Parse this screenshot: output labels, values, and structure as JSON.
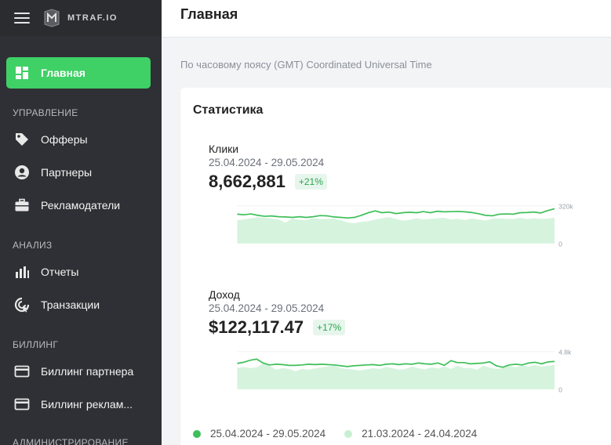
{
  "header": {
    "title": "Главная",
    "logo_text": "MTRAF.IO"
  },
  "sidebar": {
    "items": [
      {
        "label": "Главная",
        "icon": "dashboard-icon",
        "active": true
      },
      {
        "label": "Офферы",
        "icon": "tag-icon"
      },
      {
        "label": "Партнеры",
        "icon": "user-circle-icon"
      },
      {
        "label": "Рекламодатели",
        "icon": "briefcase-icon"
      },
      {
        "label": "Отчеты",
        "icon": "bar-chart-icon"
      },
      {
        "label": "Транзакции",
        "icon": "transactions-icon"
      },
      {
        "label": "Биллинг партнера",
        "icon": "card-icon"
      },
      {
        "label": "Биллинг реклам...",
        "icon": "card-icon"
      }
    ],
    "sections": [
      "УПРАВЛЕНИЕ",
      "АНАЛИЗ",
      "БИЛЛИНГ",
      "АДМИНИСТРИРОВАНИЕ"
    ]
  },
  "main": {
    "timezone": "По часовому поясу (GMT) Coordinated Universal Time",
    "stats_title": "Статистика",
    "metrics": [
      {
        "label": "Клики",
        "range": "25.04.2024 - 29.05.2024",
        "value": "8,662,881",
        "change": "+21%",
        "axis_max": "320k",
        "axis_min": "0"
      },
      {
        "label": "Доход",
        "range": "25.04.2024 - 29.05.2024",
        "value": "$122,117.47",
        "change": "+17%",
        "axis_max": "4.8k",
        "axis_min": "0"
      }
    ],
    "legend": [
      {
        "label": "25.04.2024 - 29.05.2024",
        "color": "#3fbf5a"
      },
      {
        "label": "21.03.2024 - 24.04.2024",
        "color": "#c9efd3"
      }
    ]
  },
  "colors": {
    "accent": "#3fd066",
    "sidebar_bg": "#2f3035",
    "line": "#3fbf5a",
    "area": "#d6f3de"
  },
  "chart_data": [
    {
      "type": "line",
      "title": "Клики",
      "ylim": [
        0,
        320000
      ],
      "series": [
        {
          "name": "25.04.2024 - 29.05.2024",
          "values": [
            250000,
            245000,
            252000,
            240000,
            232000,
            235000,
            228000,
            226000,
            222000,
            228000,
            222000,
            228000,
            238000,
            236000,
            226000,
            222000,
            218000,
            222000,
            240000,
            262000,
            278000,
            262000,
            268000,
            255000,
            262000,
            266000,
            262000,
            272000,
            262000,
            275000,
            270000,
            272000,
            274000,
            270000,
            264000,
            254000,
            240000,
            236000,
            250000,
            252000,
            250000,
            262000,
            264000,
            268000,
            260000,
            280000,
            296000
          ]
        },
        {
          "name": "21.03.2024 - 24.04.2024",
          "values": [
            200000,
            205000,
            215000,
            225000,
            220000,
            212000,
            205000,
            178000,
            212000,
            202000,
            200000,
            215000,
            208000,
            210000,
            212000,
            200000,
            180000,
            172000,
            185000,
            190000,
            205000,
            215000,
            225000,
            210000,
            195000,
            202000,
            215000,
            205000,
            210000,
            215000,
            220000,
            205000,
            210000,
            200000,
            212000,
            205000,
            195000,
            212000,
            215000,
            210000,
            208000,
            220000,
            208000,
            215000,
            210000,
            212000,
            220000
          ]
        }
      ]
    },
    {
      "type": "line",
      "title": "Доход",
      "ylim": [
        0,
        4800
      ],
      "series": [
        {
          "name": "25.04.2024 - 29.05.2024",
          "values": [
            3300,
            3450,
            3700,
            3850,
            3350,
            3100,
            3200,
            3150,
            3050,
            3050,
            3100,
            3200,
            3150,
            3200,
            3150,
            3100,
            3000,
            2900,
            3000,
            3050,
            3100,
            3150,
            3050,
            3200,
            3250,
            3150,
            3250,
            3200,
            3350,
            3250,
            3200,
            3350,
            3050,
            3650,
            3400,
            3400,
            3250,
            3300,
            3350,
            3500,
            3000,
            2800,
            3100,
            3200,
            3100,
            3350,
            3450,
            3250,
            3500,
            3550
          ]
        },
        {
          "name": "21.03.2024 - 24.04.2024",
          "values": [
            2700,
            2850,
            2700,
            2800,
            3300,
            3000,
            2500,
            2700,
            2600,
            2300,
            2600,
            2500,
            2650,
            2800,
            2900,
            3050,
            2700,
            2600,
            2500,
            2400,
            2550,
            2700,
            2600,
            2850,
            2700,
            2500,
            2600,
            2900,
            2700,
            2550,
            2800,
            2650,
            2900,
            2600,
            3000,
            2700,
            2750,
            2500,
            3000,
            2750,
            2600,
            2700,
            3000,
            2800,
            3050,
            2900,
            3100,
            2900,
            3000,
            3100
          ]
        }
      ]
    }
  ]
}
